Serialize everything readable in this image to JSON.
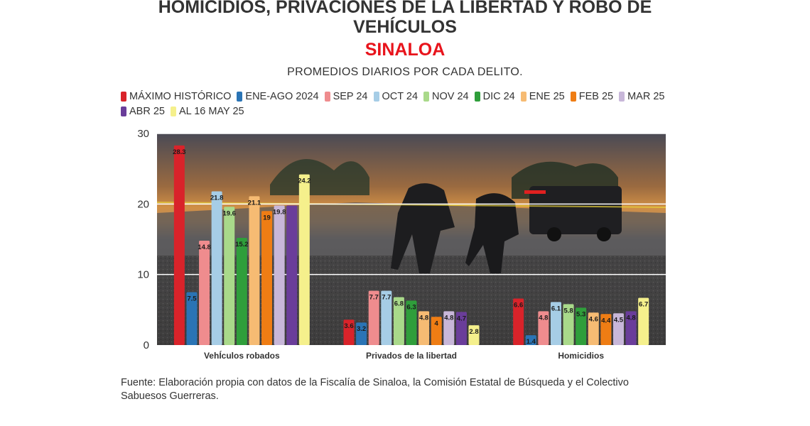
{
  "header": {
    "title_line1": "HOMICIDIOS, PRIVACIONES DE LA LIBERTAD Y ROBO DE",
    "title_line2": "VEHÍCULOS",
    "region": "SINALOA",
    "subtitle": "PROMEDIOS DIARIOS POR CADA DELITO."
  },
  "footer": {
    "source_line1": "Fuente: Elaboración propia con datos de la Fiscalía de Sinaloa, la Comisión Estatal de Búsqueda y el Colectivo",
    "source_line2": "Sabuesos Guerreras."
  },
  "chart_data": {
    "type": "bar",
    "title": "HOMICIDIOS, PRIVACIONES DE LA LIBERTAD Y ROBO DE VEHÍCULOS",
    "subtitle": "PROMEDIOS DIARIOS POR CADA DELITO.",
    "categories": [
      "VehÍculos robados",
      "Privados de la libertad",
      "Homicidios"
    ],
    "ylim": [
      0,
      30
    ],
    "yticks": [
      0,
      10,
      20,
      30
    ],
    "xlabel": "",
    "ylabel": "",
    "grid": true,
    "legend_position": "top",
    "background": "photo of police scene",
    "series": [
      {
        "name": "MÁXIMO HISTÓRICO",
        "color": "#d9232a",
        "values": [
          28.3,
          3.6,
          6.6
        ],
        "labels": [
          "28.3",
          "3.6",
          "6.6"
        ]
      },
      {
        "name": "ENE-AGO 2024",
        "color": "#2a74b5",
        "values": [
          7.5,
          3.2,
          1.4
        ],
        "labels": [
          "7.5",
          "3.2",
          "1.4"
        ]
      },
      {
        "name": "SEP 24",
        "color": "#ef8c8e",
        "values": [
          14.8,
          7.7,
          4.8
        ],
        "labels": [
          "14.8",
          "7.7",
          "4.8"
        ]
      },
      {
        "name": "OCT 24",
        "color": "#a6cde6",
        "values": [
          21.8,
          7.7,
          6.1
        ],
        "labels": [
          "21.8",
          "7.7",
          "6.1"
        ]
      },
      {
        "name": "NOV 24",
        "color": "#a9d98a",
        "values": [
          19.6,
          6.8,
          5.8
        ],
        "labels": [
          "19.6",
          "6.8",
          "5.8"
        ]
      },
      {
        "name": "DIC 24",
        "color": "#2f9e3b",
        "values": [
          15.2,
          6.3,
          5.3
        ],
        "labels": [
          "15.2",
          "6.3",
          "5.3"
        ]
      },
      {
        "name": "ENE 25",
        "color": "#f6bb73",
        "values": [
          21.1,
          4.8,
          4.6
        ],
        "labels": [
          "21.1",
          "4.8",
          "4.6"
        ]
      },
      {
        "name": "FEB 25",
        "color": "#ef7d14",
        "values": [
          19.0,
          4.0,
          4.4
        ],
        "labels": [
          "19",
          "4",
          "4.4"
        ]
      },
      {
        "name": "MAR 25",
        "color": "#c8b7d9",
        "values": [
          19.8,
          4.8,
          4.5
        ],
        "labels": [
          "19.8",
          "4.8",
          "4.5"
        ]
      },
      {
        "name": "ABR 25",
        "color": "#6a3d9a",
        "values": [
          19.8,
          4.7,
          4.8
        ],
        "labels": [
          "",
          "4.7",
          "4.8"
        ]
      },
      {
        "name": "AL 16 MAY 25",
        "color": "#f5f08c",
        "values": [
          24.2,
          2.8,
          6.7
        ],
        "labels": [
          "24.2",
          "2.8",
          "6.7"
        ]
      }
    ]
  }
}
